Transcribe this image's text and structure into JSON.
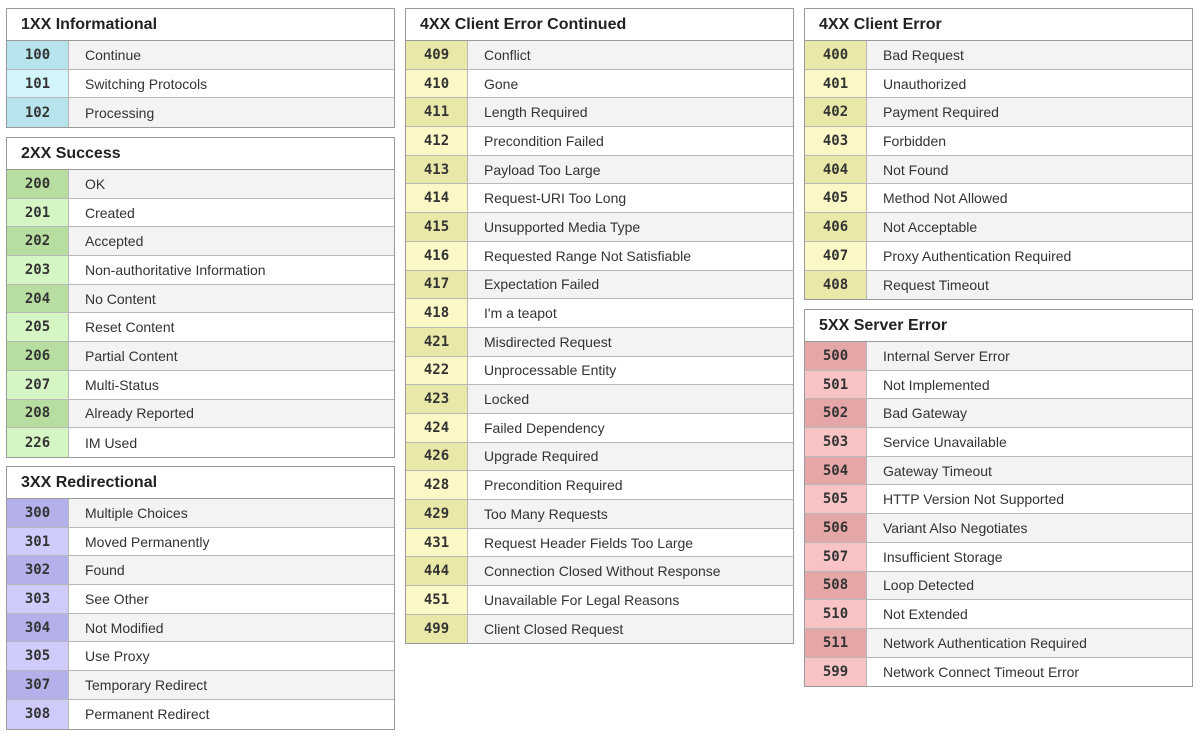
{
  "colors": {
    "info_a": "#b7e3ec",
    "info_b": "#d2f5fb",
    "success_a": "#b7dea0",
    "success_b": "#d6f5c4",
    "redirect_a": "#b3b0ea",
    "redirect_b": "#cfccfb",
    "client_a": "#eae8a8",
    "client_b": "#fbf8c6",
    "server_a": "#e5a6a8",
    "server_b": "#f7c3c5"
  },
  "groups": {
    "g1xx": {
      "title": "1XX Informational",
      "rows": [
        {
          "code": "100",
          "desc": "Continue"
        },
        {
          "code": "101",
          "desc": "Switching Protocols"
        },
        {
          "code": "102",
          "desc": "Processing"
        }
      ]
    },
    "g2xx": {
      "title": "2XX Success",
      "rows": [
        {
          "code": "200",
          "desc": "OK"
        },
        {
          "code": "201",
          "desc": "Created"
        },
        {
          "code": "202",
          "desc": "Accepted"
        },
        {
          "code": "203",
          "desc": "Non-authoritative Information"
        },
        {
          "code": "204",
          "desc": "No Content"
        },
        {
          "code": "205",
          "desc": "Reset Content"
        },
        {
          "code": "206",
          "desc": "Partial Content"
        },
        {
          "code": "207",
          "desc": "Multi-Status"
        },
        {
          "code": "208",
          "desc": "Already Reported"
        },
        {
          "code": "226",
          "desc": "IM Used"
        }
      ]
    },
    "g3xx": {
      "title": "3XX Redirectional",
      "rows": [
        {
          "code": "300",
          "desc": "Multiple Choices"
        },
        {
          "code": "301",
          "desc": "Moved Permanently"
        },
        {
          "code": "302",
          "desc": "Found"
        },
        {
          "code": "303",
          "desc": "See Other"
        },
        {
          "code": "304",
          "desc": "Not Modified"
        },
        {
          "code": "305",
          "desc": "Use Proxy"
        },
        {
          "code": "307",
          "desc": "Temporary Redirect"
        },
        {
          "code": "308",
          "desc": "Permanent Redirect"
        }
      ]
    },
    "g4xxc": {
      "title": "4XX Client Error Continued",
      "rows": [
        {
          "code": "409",
          "desc": "Conflict"
        },
        {
          "code": "410",
          "desc": "Gone"
        },
        {
          "code": "411",
          "desc": "Length Required"
        },
        {
          "code": "412",
          "desc": "Precondition Failed"
        },
        {
          "code": "413",
          "desc": "Payload Too Large"
        },
        {
          "code": "414",
          "desc": "Request-URI Too Long"
        },
        {
          "code": "415",
          "desc": "Unsupported Media Type"
        },
        {
          "code": "416",
          "desc": "Requested Range Not Satisfiable"
        },
        {
          "code": "417",
          "desc": "Expectation Failed"
        },
        {
          "code": "418",
          "desc": "I'm a teapot"
        },
        {
          "code": "421",
          "desc": "Misdirected Request"
        },
        {
          "code": "422",
          "desc": "Unprocessable Entity"
        },
        {
          "code": "423",
          "desc": "Locked"
        },
        {
          "code": "424",
          "desc": "Failed Dependency"
        },
        {
          "code": "426",
          "desc": "Upgrade Required"
        },
        {
          "code": "428",
          "desc": "Precondition Required"
        },
        {
          "code": "429",
          "desc": "Too Many Requests"
        },
        {
          "code": "431",
          "desc": "Request Header Fields Too Large"
        },
        {
          "code": "444",
          "desc": "Connection Closed Without Response"
        },
        {
          "code": "451",
          "desc": "Unavailable For Legal Reasons"
        },
        {
          "code": "499",
          "desc": "Client Closed Request"
        }
      ]
    },
    "g4xx": {
      "title": "4XX Client Error",
      "rows": [
        {
          "code": "400",
          "desc": "Bad Request"
        },
        {
          "code": "401",
          "desc": "Unauthorized"
        },
        {
          "code": "402",
          "desc": "Payment Required"
        },
        {
          "code": "403",
          "desc": "Forbidden"
        },
        {
          "code": "404",
          "desc": "Not Found"
        },
        {
          "code": "405",
          "desc": "Method Not Allowed"
        },
        {
          "code": "406",
          "desc": "Not Acceptable"
        },
        {
          "code": "407",
          "desc": "Proxy Authentication Required"
        },
        {
          "code": "408",
          "desc": "Request Timeout"
        }
      ]
    },
    "g5xx": {
      "title": "5XX Server Error",
      "rows": [
        {
          "code": "500",
          "desc": "Internal Server Error"
        },
        {
          "code": "501",
          "desc": "Not Implemented"
        },
        {
          "code": "502",
          "desc": "Bad Gateway"
        },
        {
          "code": "503",
          "desc": "Service Unavailable"
        },
        {
          "code": "504",
          "desc": "Gateway Timeout"
        },
        {
          "code": "505",
          "desc": "HTTP Version Not Supported"
        },
        {
          "code": "506",
          "desc": "Variant Also Negotiates"
        },
        {
          "code": "507",
          "desc": "Insufficient Storage"
        },
        {
          "code": "508",
          "desc": "Loop Detected"
        },
        {
          "code": "510",
          "desc": "Not Extended"
        },
        {
          "code": "511",
          "desc": "Network Authentication Required"
        },
        {
          "code": "599",
          "desc": "Network Connect Timeout Error"
        }
      ]
    }
  }
}
